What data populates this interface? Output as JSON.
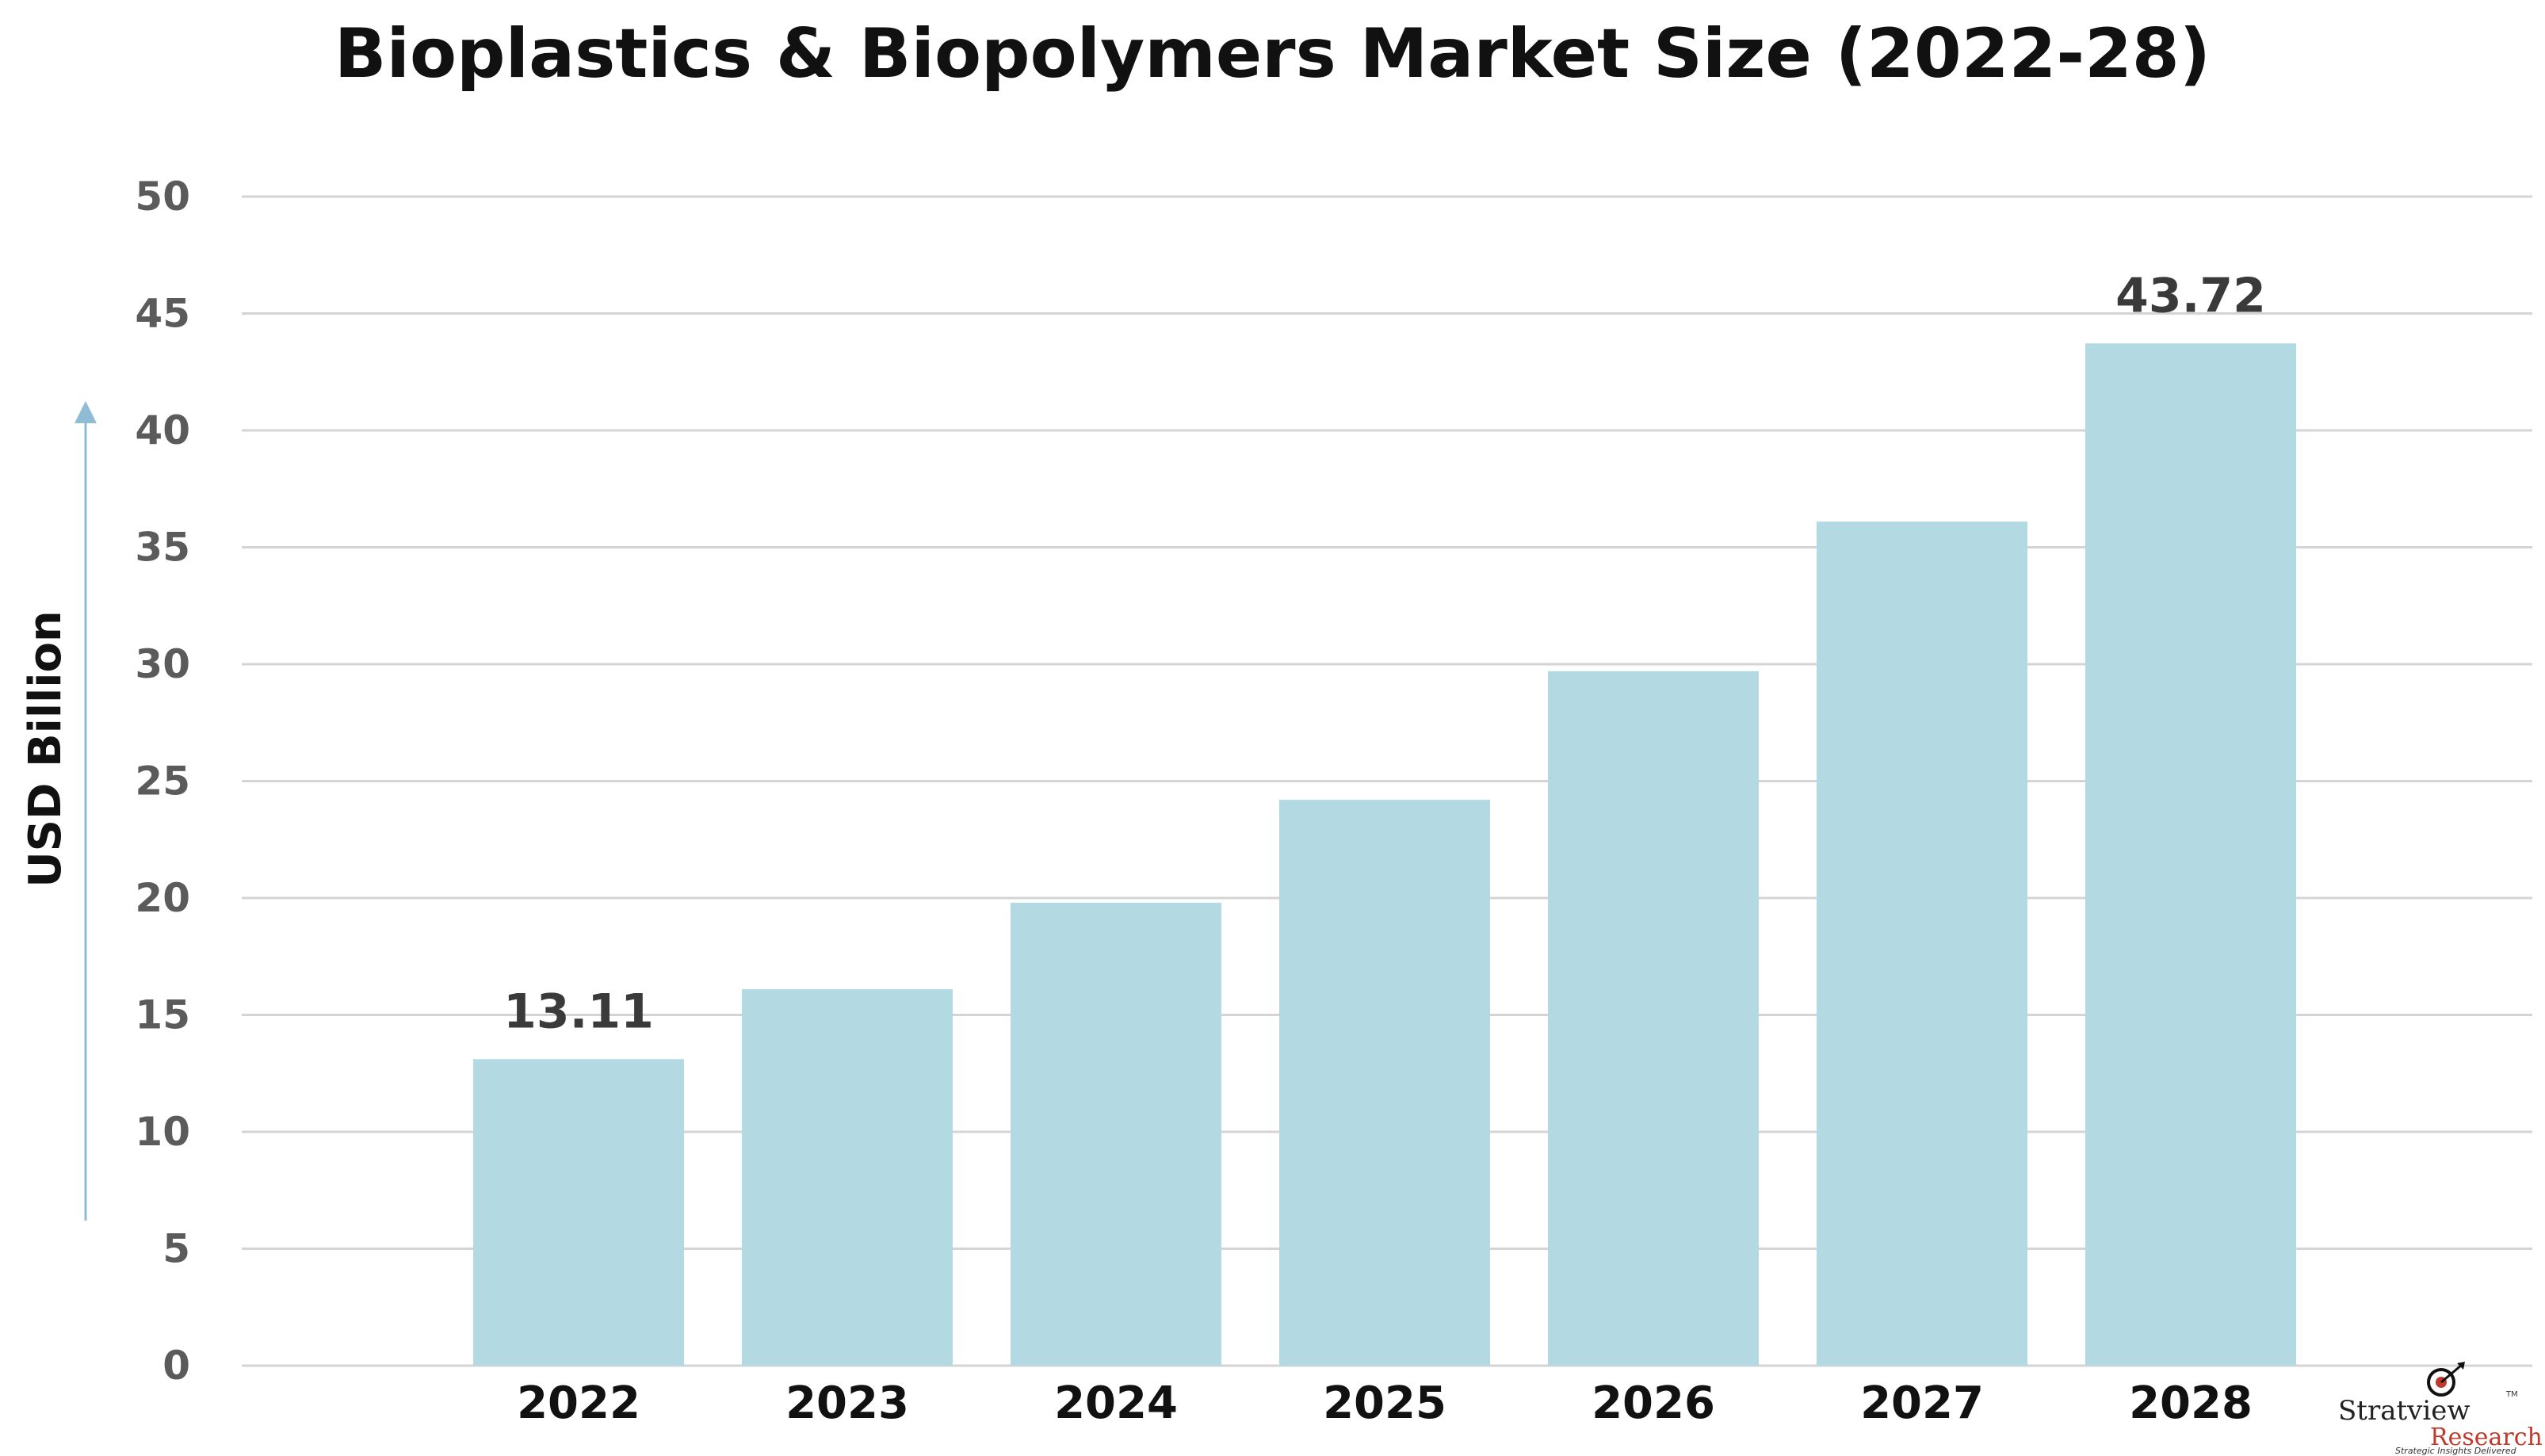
{
  "chart_data": {
    "type": "bar",
    "title": "Bioplastics & Biopolymers Market Size (2022-28)",
    "ylabel": "USD Billion",
    "xlabel": "",
    "categories": [
      "2022",
      "2023",
      "2024",
      "2025",
      "2026",
      "2027",
      "2028"
    ],
    "values": [
      13.11,
      16.1,
      19.8,
      24.2,
      29.7,
      36.1,
      43.72
    ],
    "data_labels": [
      {
        "category": "2022",
        "text": "13.11"
      },
      {
        "category": "2028",
        "text": "43.72"
      }
    ],
    "ylim": [
      0,
      50
    ],
    "yticks": [
      "0",
      "5",
      "10",
      "15",
      "20",
      "25",
      "30",
      "35",
      "40",
      "45",
      "50"
    ],
    "grid": true,
    "legend": "none",
    "colors": {
      "bar": "#b3dae3",
      "grid": "#d4d4d4",
      "axis_arrow": "#8fbcd4"
    }
  },
  "branding": {
    "name_line1": "Stratview",
    "name_line2": "Research",
    "tagline": "Strategic Insights Delivered",
    "trademark": "TM"
  }
}
